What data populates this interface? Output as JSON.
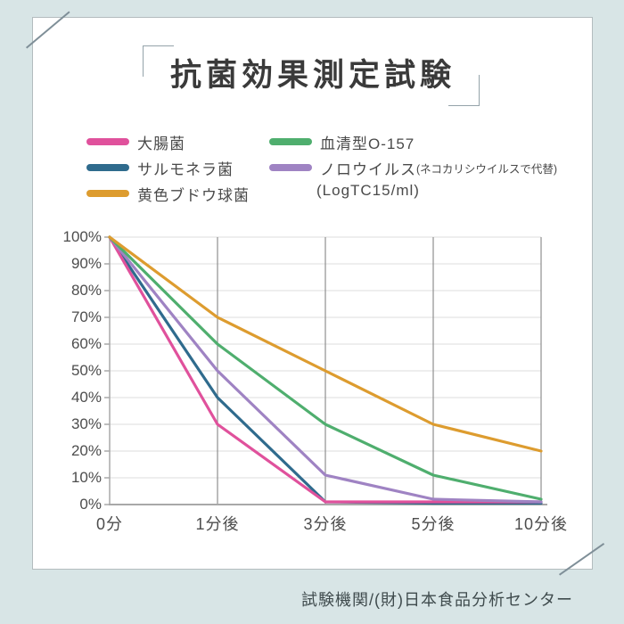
{
  "page": {
    "title": "抗菌効果測定試験",
    "credit": "試験機関/(財)日本食品分析センター",
    "background_color": "#d8e5e6",
    "card_color": "#ffffff"
  },
  "chart_data": {
    "type": "line",
    "title": "抗菌効果測定試験",
    "categories": [
      "0分",
      "1分後",
      "3分後",
      "5分後",
      "10分後"
    ],
    "xlabel": "",
    "ylabel": "",
    "ylim": [
      0,
      100
    ],
    "y_tick_labels": [
      "100%",
      "90%",
      "80%",
      "70%",
      "60%",
      "50%",
      "40%",
      "30%",
      "20%",
      "10%",
      "0%"
    ],
    "grid": true,
    "legend_position": "top",
    "unit_label": "(LogTC15/ml)",
    "series": [
      {
        "name": "大腸菌",
        "color": "#e0519c",
        "values": [
          100,
          30,
          1,
          1,
          1
        ]
      },
      {
        "name": "サルモネラ菌",
        "color": "#2f6b8d",
        "values": [
          100,
          40,
          1,
          0.5,
          0.5
        ]
      },
      {
        "name": "黄色ブドウ球菌",
        "color": "#dd9c2f",
        "values": [
          100,
          70,
          50,
          30,
          20
        ]
      },
      {
        "name": "血清型O-157",
        "color": "#4fae6e",
        "values": [
          100,
          60,
          30,
          11,
          2
        ]
      },
      {
        "name": "ノロウイルス",
        "note": "(ネコカリシウイルスで代替)",
        "color": "#9f83c3",
        "values": [
          100,
          50,
          11,
          2,
          1
        ]
      }
    ],
    "draw_order": [
      1,
      0,
      4,
      3,
      2
    ],
    "colors": {
      "vertical_grid": "#8f8f8f",
      "horizontal_grid": "#dedede",
      "axis": "#a8a8a8"
    }
  }
}
